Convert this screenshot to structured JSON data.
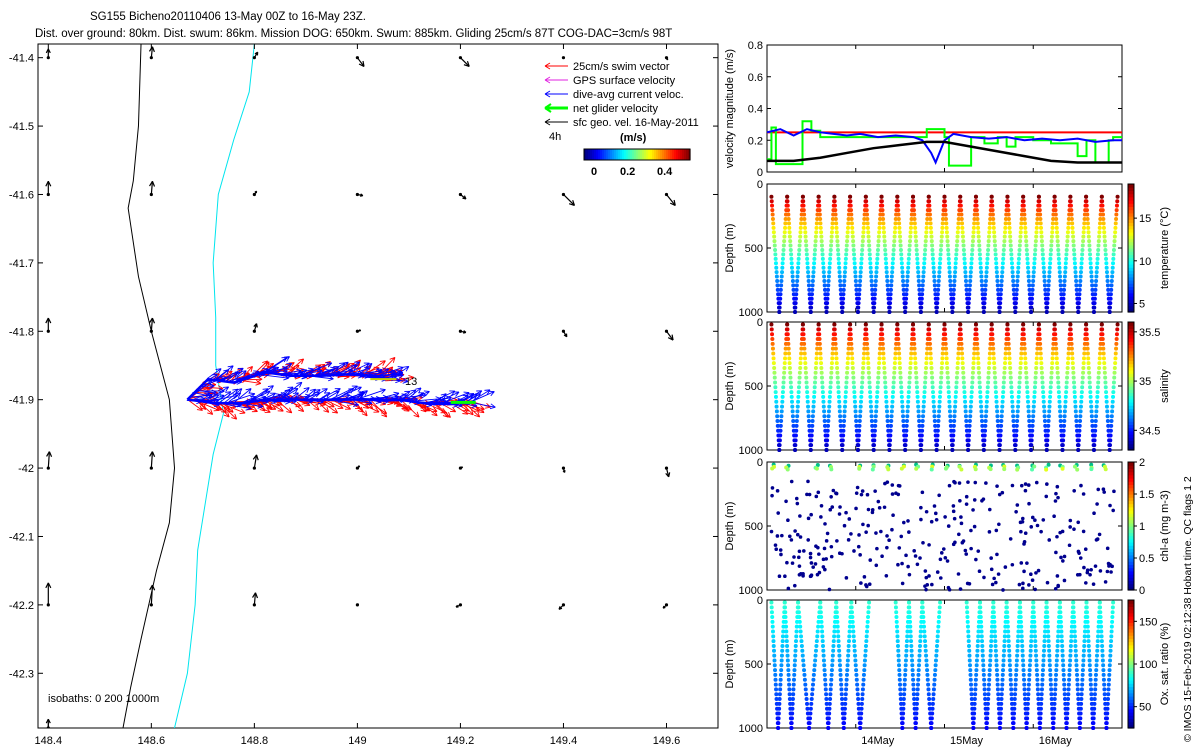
{
  "header": {
    "title_line1": "SG155 Bicheno20110406 13-May 00Z to 16-May 23Z.",
    "title_line2": "Dist. over ground: 80km. Dist. swum: 86km. Mission DOG: 650km. Swum: 885km. Gliding 25cm/s 87T COG-DAC=3cm/s 98T"
  },
  "colors": {
    "swim": "#ff0000",
    "gps": "#e020e0",
    "current": "#0000ff",
    "net": "#00ff00",
    "geo": "#000000",
    "isobath200": "#000000",
    "isobath1000": "#00e5ee"
  },
  "map": {
    "legend": {
      "items": [
        {
          "label": "25cm/s swim vector",
          "color": "#ff0000"
        },
        {
          "label": "GPS surface velocity",
          "color": "#e020e0"
        },
        {
          "label": "dive-avg current veloc.",
          "color": "#0000ff"
        },
        {
          "label": "net glider velocity",
          "color": "#00ff00"
        },
        {
          "label": "sfc geo. vel. 16-May-2011",
          "color": "#000000"
        }
      ],
      "time_step": "4h",
      "cbar_unit": "(m/s)",
      "cbar_ticks": [
        "0",
        "0.2",
        "0.4"
      ]
    },
    "isobath_label": "isobaths: 0   200  1000m",
    "end_label": "13"
  },
  "footer": {
    "credit": "© IMOS 15-Feb-2019 02:12:38 Hobart time. QC flags 1  2"
  },
  "chart_data": [
    {
      "type": "scatter",
      "panel": "map",
      "xlim": [
        148.38,
        149.7
      ],
      "ylim": [
        -42.38,
        -41.38
      ],
      "xticks": [
        148.4,
        148.6,
        148.8,
        149,
        149.2,
        149.4,
        149.6
      ],
      "yticks": [
        -41.4,
        -41.5,
        -41.6,
        -41.7,
        -41.8,
        -41.9,
        -42,
        -42.1,
        -42.2,
        -42.3
      ],
      "geo_arrows": [
        {
          "lon": 148.4,
          "lat": -41.4,
          "u": 0,
          "v": 0.08
        },
        {
          "lon": 148.6,
          "lat": -41.4,
          "u": 0.01,
          "v": 0.1
        },
        {
          "lon": 148.8,
          "lat": -41.4,
          "u": 0.03,
          "v": 0.05
        },
        {
          "lon": 149,
          "lat": -41.4,
          "u": 0.06,
          "v": -0.08
        },
        {
          "lon": 149.2,
          "lat": -41.4,
          "u": 0.08,
          "v": -0.08
        },
        {
          "lon": 149.4,
          "lat": -41.4,
          "u": 0.01,
          "v": 0
        },
        {
          "lon": 149.6,
          "lat": -41.4,
          "u": 0.01,
          "v": -0.02
        },
        {
          "lon": 148.4,
          "lat": -41.6,
          "u": 0,
          "v": 0.12
        },
        {
          "lon": 148.6,
          "lat": -41.6,
          "u": 0.01,
          "v": 0.12
        },
        {
          "lon": 148.8,
          "lat": -41.6,
          "u": 0.02,
          "v": 0.03
        },
        {
          "lon": 149,
          "lat": -41.6,
          "u": 0.05,
          "v": -0.01
        },
        {
          "lon": 149.2,
          "lat": -41.6,
          "u": 0.05,
          "v": -0.04
        },
        {
          "lon": 149.4,
          "lat": -41.6,
          "u": 0.1,
          "v": -0.1
        },
        {
          "lon": 149.6,
          "lat": -41.6,
          "u": 0.08,
          "v": -0.1
        },
        {
          "lon": 148.4,
          "lat": -41.8,
          "u": 0,
          "v": 0.12
        },
        {
          "lon": 148.6,
          "lat": -41.8,
          "u": 0.01,
          "v": 0.12
        },
        {
          "lon": 148.8,
          "lat": -41.8,
          "u": 0.02,
          "v": 0.07
        },
        {
          "lon": 149,
          "lat": -41.8,
          "u": 0.03,
          "v": 0.01
        },
        {
          "lon": 149.2,
          "lat": -41.8,
          "u": 0.05,
          "v": -0.01
        },
        {
          "lon": 149.4,
          "lat": -41.8,
          "u": 0.03,
          "v": -0.05
        },
        {
          "lon": 149.6,
          "lat": -41.8,
          "u": 0.06,
          "v": -0.08
        },
        {
          "lon": 148.4,
          "lat": -42,
          "u": 0.01,
          "v": 0.15
        },
        {
          "lon": 148.6,
          "lat": -42,
          "u": 0.01,
          "v": 0.15
        },
        {
          "lon": 148.8,
          "lat": -42,
          "u": 0.02,
          "v": 0.12
        },
        {
          "lon": 149,
          "lat": -42,
          "u": 0.02,
          "v": 0.02
        },
        {
          "lon": 149.2,
          "lat": -42,
          "u": 0.02,
          "v": 0.01
        },
        {
          "lon": 149.4,
          "lat": -42,
          "u": 0.01,
          "v": -0.04
        },
        {
          "lon": 149.6,
          "lat": -42,
          "u": 0.02,
          "v": -0.08
        },
        {
          "lon": 148.4,
          "lat": -42.2,
          "u": 0,
          "v": 0.2
        },
        {
          "lon": 148.6,
          "lat": -42.2,
          "u": 0.01,
          "v": 0.18
        },
        {
          "lon": 148.8,
          "lat": -42.2,
          "u": 0.01,
          "v": 0.11
        },
        {
          "lon": 149,
          "lat": -42.2,
          "u": 0.01,
          "v": 0.01
        },
        {
          "lon": 149.2,
          "lat": -42.2,
          "u": -0.04,
          "v": -0.02
        },
        {
          "lon": 149.4,
          "lat": -42.2,
          "u": -0.04,
          "v": -0.04
        },
        {
          "lon": 149.6,
          "lat": -42.2,
          "u": -0.03,
          "v": -0.03
        },
        {
          "lon": 148.4,
          "lat": -42.38,
          "u": 0,
          "v": 0.08
        }
      ],
      "isobath_200": [
        [
          148.58,
          -41.38
        ],
        [
          148.575,
          -41.5
        ],
        [
          148.565,
          -41.58
        ],
        [
          148.555,
          -41.62
        ],
        [
          148.575,
          -41.72
        ],
        [
          148.6,
          -41.8
        ],
        [
          148.635,
          -41.9
        ],
        [
          148.645,
          -42
        ],
        [
          148.635,
          -42.08
        ],
        [
          148.61,
          -42.15
        ],
        [
          148.58,
          -42.25
        ],
        [
          148.56,
          -42.32
        ],
        [
          148.545,
          -42.38
        ]
      ],
      "isobath_1000": [
        [
          148.8,
          -41.38
        ],
        [
          148.79,
          -41.45
        ],
        [
          148.76,
          -41.52
        ],
        [
          148.73,
          -41.6
        ],
        [
          148.72,
          -41.7
        ],
        [
          148.725,
          -41.78
        ],
        [
          148.725,
          -41.85
        ],
        [
          148.74,
          -41.92
        ],
        [
          148.72,
          -41.98
        ],
        [
          148.705,
          -42.05
        ],
        [
          148.69,
          -42.12
        ],
        [
          148.685,
          -42.2
        ],
        [
          148.67,
          -42.3
        ],
        [
          148.645,
          -42.38
        ]
      ],
      "track_north": [
        [
          148.67,
          -41.9
        ],
        [
          148.71,
          -41.87
        ],
        [
          148.76,
          -41.875
        ],
        [
          148.82,
          -41.86
        ],
        [
          148.87,
          -41.865
        ],
        [
          148.93,
          -41.865
        ],
        [
          148.98,
          -41.863
        ],
        [
          149.03,
          -41.865
        ],
        [
          149.06,
          -41.87
        ]
      ],
      "track_south": [
        [
          148.67,
          -41.9
        ],
        [
          148.73,
          -41.905
        ],
        [
          148.78,
          -41.905
        ],
        [
          148.82,
          -41.9
        ],
        [
          148.87,
          -41.9
        ],
        [
          148.93,
          -41.9
        ],
        [
          148.98,
          -41.9
        ],
        [
          149.03,
          -41.9
        ],
        [
          149.08,
          -41.9
        ],
        [
          149.13,
          -41.905
        ],
        [
          149.18,
          -41.906
        ],
        [
          149.22,
          -41.904
        ]
      ]
    },
    {
      "type": "line",
      "panel": "velocity",
      "ylabel": "velocity magnitude (m/s)",
      "xlim": [
        13,
        17
      ],
      "ylim": [
        0,
        0.8
      ],
      "yticks": [
        "0",
        "0.2",
        "0.4",
        "0.6",
        "0.8"
      ],
      "series": [
        {
          "color": "#ff0000",
          "x": [
            13,
            17
          ],
          "y": [
            0.25,
            0.25
          ]
        },
        {
          "color": "#00ff00",
          "x": [
            13,
            13.05,
            13.05,
            13.1,
            13.1,
            13.4,
            13.4,
            13.5,
            13.5,
            13.6,
            13.6,
            14.8,
            14.8,
            15.0,
            15.0,
            15.05,
            15.05,
            15.3,
            15.3,
            15.45,
            15.45,
            15.6,
            15.6,
            15.7,
            15.7,
            15.8,
            15.8,
            16.0,
            16.0,
            16.2,
            16.2,
            16.5,
            16.5,
            16.6,
            16.6,
            16.7,
            16.7,
            16.85,
            16.85,
            16.9,
            16.9,
            17
          ],
          "y": [
            0.08,
            0.08,
            0.28,
            0.28,
            0.05,
            0.05,
            0.32,
            0.32,
            0.26,
            0.26,
            0.22,
            0.22,
            0.27,
            0.27,
            0.22,
            0.22,
            0.04,
            0.04,
            0.22,
            0.22,
            0.18,
            0.18,
            0.22,
            0.22,
            0.16,
            0.16,
            0.22,
            0.22,
            0.2,
            0.2,
            0.18,
            0.18,
            0.1,
            0.1,
            0.2,
            0.2,
            0.06,
            0.06,
            0.2,
            0.2,
            0.22,
            0.22
          ]
        },
        {
          "color": "#0000ff",
          "x": [
            13,
            13.15,
            13.3,
            13.45,
            13.6,
            13.75,
            13.9,
            14.05,
            14.25,
            14.45,
            14.65,
            14.75,
            14.85,
            14.9,
            15.0,
            15.1,
            15.3,
            15.5,
            15.7,
            15.9,
            16.1,
            16.3,
            16.5,
            16.7,
            16.9,
            17
          ],
          "y": [
            0.25,
            0.27,
            0.23,
            0.27,
            0.25,
            0.24,
            0.23,
            0.24,
            0.22,
            0.23,
            0.22,
            0.2,
            0.12,
            0.06,
            0.2,
            0.24,
            0.22,
            0.21,
            0.22,
            0.2,
            0.21,
            0.2,
            0.21,
            0.19,
            0.2,
            0.2
          ]
        },
        {
          "color": "#000000",
          "x": [
            13,
            13.3,
            13.6,
            13.9,
            14.2,
            14.5,
            14.8,
            15.0,
            15.3,
            15.6,
            15.9,
            16.2,
            16.5,
            16.8,
            17
          ],
          "y": [
            0.07,
            0.07,
            0.09,
            0.12,
            0.15,
            0.17,
            0.19,
            0.19,
            0.16,
            0.13,
            0.1,
            0.07,
            0.06,
            0.06,
            0.06
          ]
        }
      ]
    },
    {
      "type": "scatter",
      "panel": "temperature",
      "ylabel": "Depth (m)",
      "ylim": [
        1000,
        0
      ],
      "yticks": [
        "0",
        "500",
        "1000"
      ],
      "cbar_label": "temperature (°C)",
      "cbar_ticks": [
        "5",
        "10",
        "15"
      ],
      "clim": [
        4,
        19
      ],
      "dives": 22,
      "min_depth": 100,
      "max_depth": 1000
    },
    {
      "type": "scatter",
      "panel": "salinity",
      "ylabel": "Depth (m)",
      "ylim": [
        1000,
        0
      ],
      "yticks": [
        "0",
        "500",
        "1000"
      ],
      "cbar_label": "salinity",
      "cbar_ticks": [
        "34.5",
        "35",
        "35.5"
      ],
      "clim": [
        34.3,
        35.6
      ],
      "dives": 22,
      "min_depth": 20,
      "max_depth": 1000
    },
    {
      "type": "scatter",
      "panel": "chla",
      "ylabel": "Depth (m)",
      "ylim": [
        1000,
        0
      ],
      "yticks": [
        "0",
        "500",
        "1000"
      ],
      "cbar_label": "chl-a (mg m-3)",
      "cbar_ticks": [
        "0",
        "0.5",
        "1",
        "1.5",
        "2"
      ],
      "clim": [
        0,
        2
      ],
      "dives": 22
    },
    {
      "type": "scatter",
      "panel": "oxygen",
      "ylabel": "Depth (m)",
      "ylim": [
        1000,
        0
      ],
      "yticks": [
        "0",
        "500",
        "1000"
      ],
      "cbar_label": "Ox. sat. ratio (%)",
      "cbar_ticks": [
        "50",
        "100",
        "150"
      ],
      "clim": [
        25,
        175
      ],
      "xticks": [
        "14May",
        "15May",
        "16May"
      ],
      "xtick_days": [
        14,
        15,
        16
      ],
      "dive_starts": [
        13.05,
        13.2,
        13.35,
        13.6,
        13.78,
        13.95,
        14.15,
        14.45,
        14.6,
        14.75,
        14.95,
        15.25,
        15.4,
        15.55,
        15.7,
        15.85,
        16.0,
        16.15,
        16.3,
        16.45,
        16.6,
        16.75,
        16.9
      ]
    }
  ]
}
